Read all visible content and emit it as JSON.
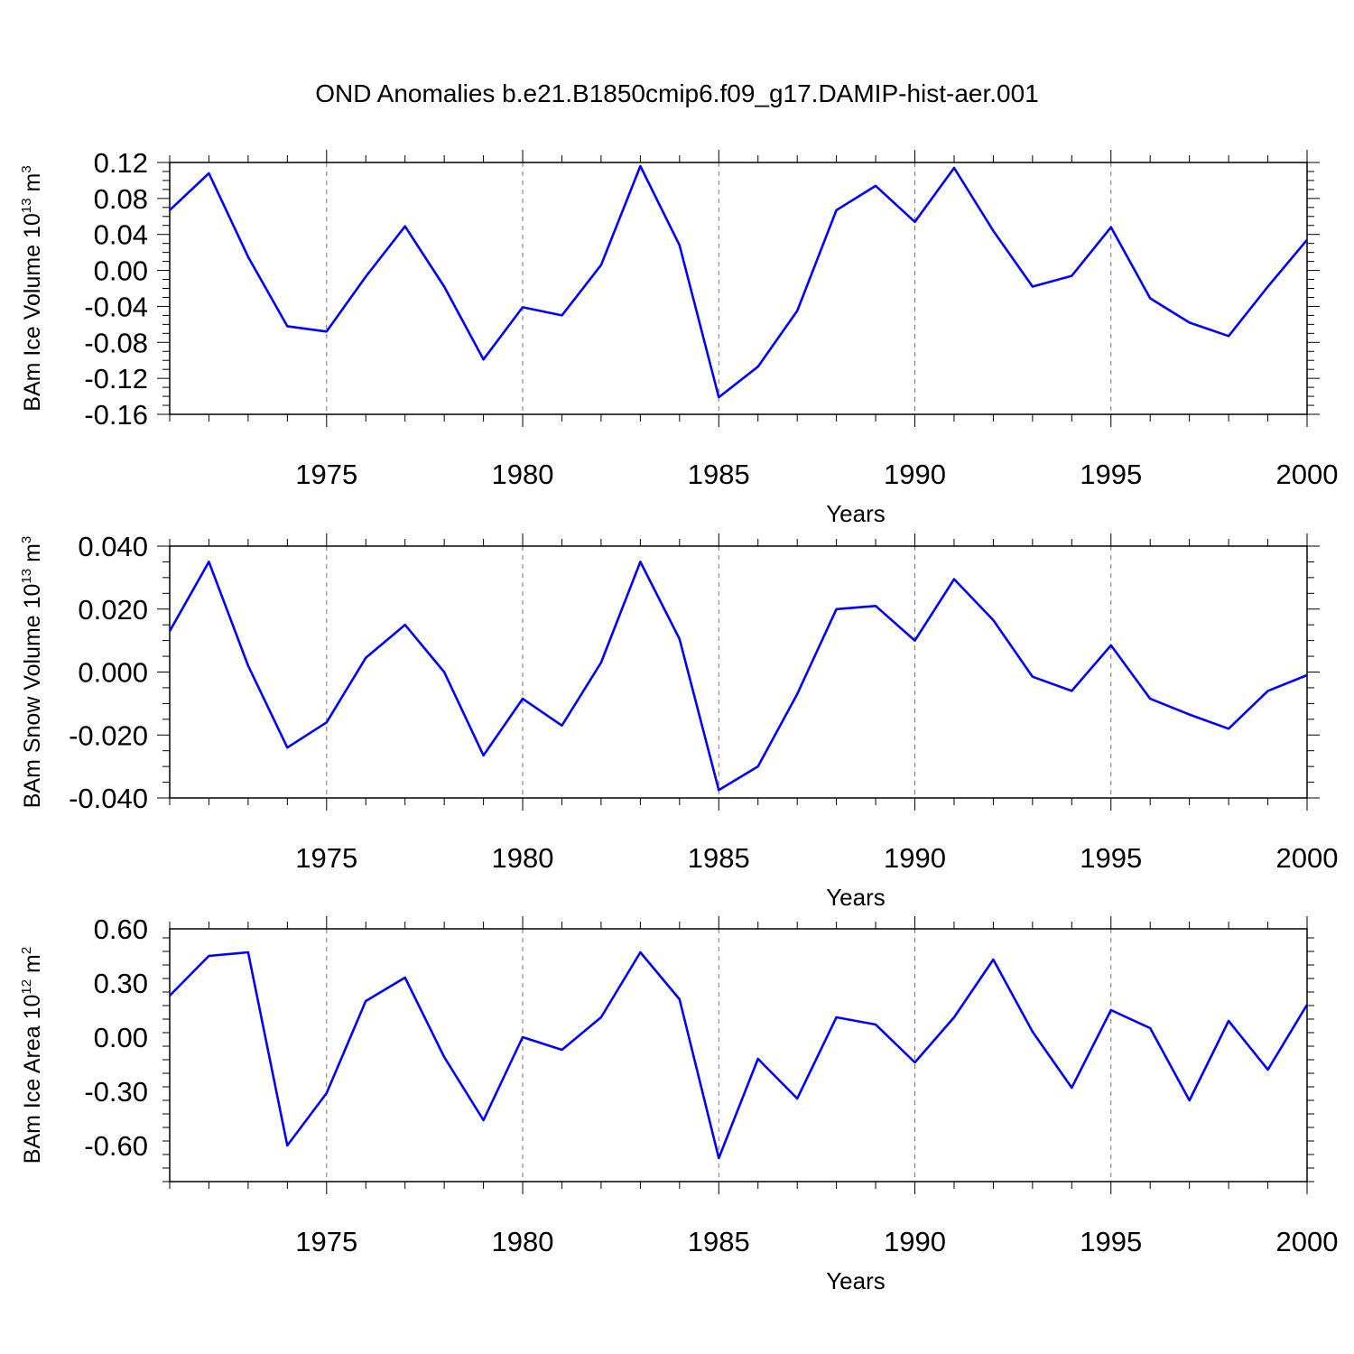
{
  "title": "OND Anomalies b.e21.B1850cmip6.f09_g17.DAMIP-hist-aer.001",
  "line_color": "#0000ff",
  "chart_data": [
    {
      "type": "line",
      "ylabel": "BAm Ice Volume 10",
      "ylabel_sup": "13",
      "ylabel_unit": "m",
      "ylabel_unit_sup": "3",
      "xlabel": "Years",
      "xlim": [
        1971,
        2000
      ],
      "ylim": [
        -0.16,
        0.12
      ],
      "yticks": [
        "0.12",
        "0.08",
        "0.04",
        "0.00",
        "-0.04",
        "-0.08",
        "-0.12",
        "-0.16"
      ],
      "ytick_values": [
        0.12,
        0.08,
        0.04,
        0.0,
        -0.04,
        -0.08,
        -0.12,
        -0.16
      ],
      "xticks": [
        "1975",
        "1980",
        "1985",
        "1990",
        "1995",
        "2000"
      ],
      "xtick_values": [
        1975,
        1980,
        1985,
        1990,
        1995,
        2000
      ],
      "x": [
        1971,
        1972,
        1973,
        1974,
        1975,
        1976,
        1977,
        1978,
        1979,
        1980,
        1981,
        1982,
        1983,
        1984,
        1985,
        1986,
        1987,
        1988,
        1989,
        1990,
        1991,
        1992,
        1993,
        1994,
        1995,
        1996,
        1997,
        1998,
        1999,
        2000
      ],
      "values": [
        0.067,
        0.108,
        0.015,
        -0.062,
        -0.068,
        -0.007,
        0.049,
        -0.018,
        -0.099,
        -0.041,
        -0.05,
        0.006,
        0.116,
        0.028,
        -0.141,
        -0.107,
        -0.045,
        0.067,
        0.094,
        0.054,
        0.114,
        0.044,
        -0.018,
        -0.006,
        0.048,
        -0.031,
        -0.058,
        -0.073,
        -0.018,
        0.034
      ],
      "grid": "dashed vertical at major x ticks"
    },
    {
      "type": "line",
      "ylabel": "BAm Snow Volume 10",
      "ylabel_sup": "13",
      "ylabel_unit": "m",
      "ylabel_unit_sup": "3",
      "xlabel": "Years",
      "xlim": [
        1971,
        2000
      ],
      "ylim": [
        -0.04,
        0.04
      ],
      "yticks": [
        "0.040",
        "0.020",
        "0.000",
        "-0.020",
        "-0.040"
      ],
      "ytick_values": [
        0.04,
        0.02,
        0.0,
        -0.02,
        -0.04
      ],
      "xticks": [
        "1975",
        "1980",
        "1985",
        "1990",
        "1995",
        "2000"
      ],
      "xtick_values": [
        1975,
        1980,
        1985,
        1990,
        1995,
        2000
      ],
      "x": [
        1971,
        1972,
        1973,
        1974,
        1975,
        1976,
        1977,
        1978,
        1979,
        1980,
        1981,
        1982,
        1983,
        1984,
        1985,
        1986,
        1987,
        1988,
        1989,
        1990,
        1991,
        1992,
        1993,
        1994,
        1995,
        1996,
        1997,
        1998,
        1999,
        2000
      ],
      "values": [
        0.013,
        0.035,
        0.002,
        -0.024,
        -0.016,
        0.0045,
        0.015,
        0.0,
        -0.0265,
        -0.0085,
        -0.017,
        0.003,
        0.035,
        0.0105,
        -0.0375,
        -0.03,
        -0.007,
        0.02,
        0.021,
        0.01,
        0.0295,
        0.0165,
        -0.0015,
        -0.006,
        0.0085,
        -0.0085,
        -0.0135,
        -0.018,
        -0.006,
        -0.001
      ],
      "grid": "dashed vertical at major x ticks"
    },
    {
      "type": "line",
      "ylabel": "BAm Ice Area 10",
      "ylabel_sup": "12",
      "ylabel_unit": "m",
      "ylabel_unit_sup": "2",
      "xlabel": "Years",
      "xlim": [
        1971,
        2000
      ],
      "ylim": [
        -0.8,
        0.6
      ],
      "yticks": [
        "0.60",
        "0.30",
        "0.00",
        "-0.30",
        "-0.60"
      ],
      "ytick_values": [
        0.6,
        0.3,
        0.0,
        -0.3,
        -0.6
      ],
      "xticks": [
        "1975",
        "1980",
        "1985",
        "1990",
        "1995",
        "2000"
      ],
      "xtick_values": [
        1975,
        1980,
        1985,
        1990,
        1995,
        2000
      ],
      "x": [
        1971,
        1972,
        1973,
        1974,
        1975,
        1976,
        1977,
        1978,
        1979,
        1980,
        1981,
        1982,
        1983,
        1984,
        1985,
        1986,
        1987,
        1988,
        1989,
        1990,
        1991,
        1992,
        1993,
        1994,
        1995,
        1996,
        1997,
        1998,
        1999,
        2000
      ],
      "values": [
        0.23,
        0.45,
        0.47,
        -0.6,
        -0.31,
        0.2,
        0.33,
        -0.11,
        -0.46,
        0.0,
        -0.07,
        0.11,
        0.47,
        0.21,
        -0.67,
        -0.12,
        -0.34,
        0.11,
        0.07,
        -0.14,
        0.11,
        0.43,
        0.03,
        -0.28,
        0.15,
        0.05,
        -0.35,
        0.09,
        -0.18,
        0.18
      ],
      "grid": "dashed vertical at major x ticks"
    }
  ]
}
